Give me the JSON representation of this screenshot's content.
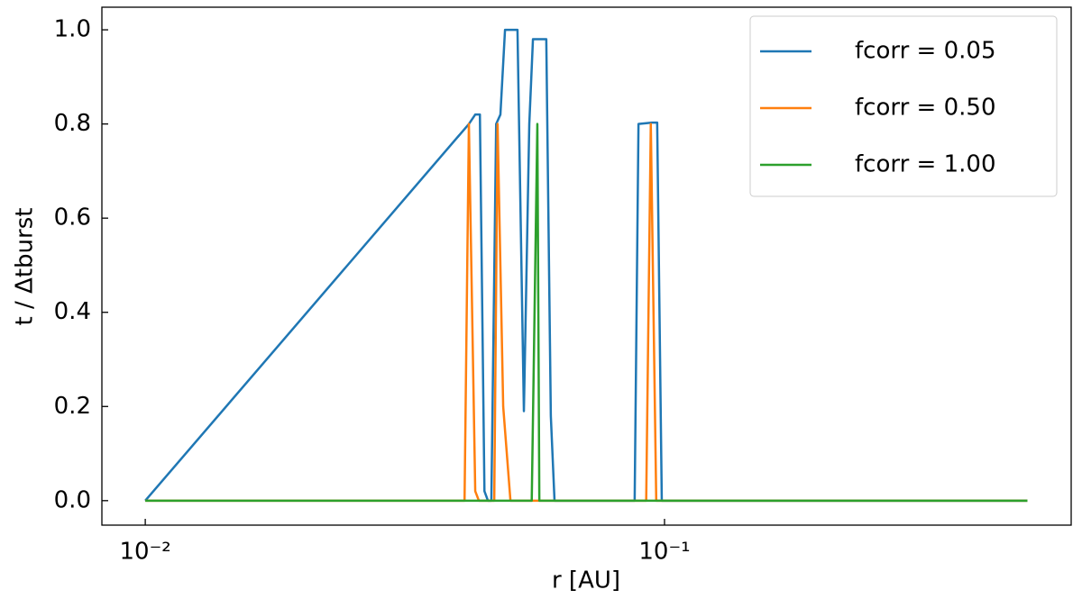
{
  "chart_data": {
    "type": "line",
    "x_label": "r [AU]",
    "y_label": "t / Δtburst",
    "xscale": "log",
    "xlim": [
      0.00825,
      0.607
    ],
    "ylim": [
      -0.052,
      1.048
    ],
    "xticks": [
      {
        "value": 0.01,
        "label": "10⁻²"
      },
      {
        "value": 0.1,
        "label": "10⁻¹"
      }
    ],
    "yticks": [
      {
        "value": 0,
        "label": "0.0"
      },
      0.2,
      0.4,
      0.6,
      0.8,
      {
        "value": 1,
        "label": "1.0"
      }
    ],
    "legend": "upper right",
    "series": [
      {
        "name": "fcorr = 0.05",
        "color": "#1f77b4",
        "x": [
          0.01,
          0.042,
          0.0432,
          0.0441,
          0.045,
          0.0457,
          0.0464,
          0.0474,
          0.0483,
          0.0493,
          0.0521,
          0.0536,
          0.0549,
          0.0558,
          0.0592,
          0.0604,
          0.0614,
          0.0876,
          0.0891,
          0.0946,
          0.0968,
          0.0988,
          0.5
        ],
        "values": [
          0,
          0.8,
          0.82,
          0.82,
          0.02,
          0,
          0,
          0.8,
          0.82,
          1.0,
          1.0,
          0.19,
          0.8,
          0.98,
          0.98,
          0.18,
          0,
          0,
          0.8,
          0.803,
          0.803,
          0,
          0
        ]
      },
      {
        "name": "fcorr = 0.50",
        "color": "#ff7f0e",
        "x": [
          0.01,
          0.0412,
          0.042,
          0.0432,
          0.0439,
          0.047,
          0.0477,
          0.0489,
          0.0505,
          0.0922,
          0.0941,
          0.0964,
          0.5
        ],
        "values": [
          0,
          0,
          0.8,
          0.02,
          0,
          0,
          0.8,
          0.2,
          0,
          0,
          0.8,
          0,
          0
        ]
      },
      {
        "name": "fcorr = 1.00",
        "color": "#2ca02c",
        "x": [
          0.01,
          0.0555,
          0.0569,
          0.0574,
          0.5
        ],
        "values": [
          0,
          0,
          0.8,
          0,
          0
        ]
      }
    ]
  }
}
